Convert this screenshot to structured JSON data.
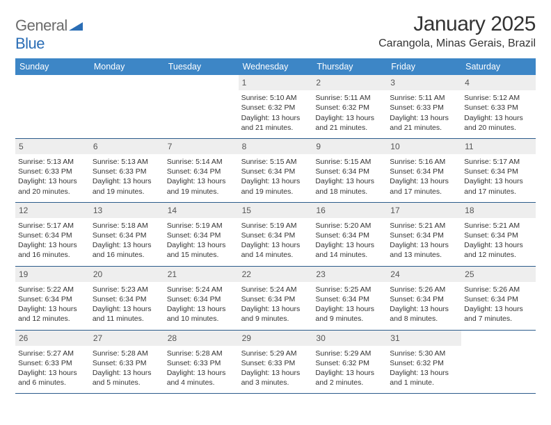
{
  "brand": {
    "name_a": "General",
    "name_b": "Blue"
  },
  "title": "January 2025",
  "location": "Carangola, Minas Gerais, Brazil",
  "colors": {
    "header_bg": "#3d86c6",
    "header_text": "#ffffff",
    "daynum_bg": "#eeeeee",
    "week_border": "#2a5a8a",
    "text": "#333333",
    "logo_gray": "#6b6b6b",
    "logo_blue": "#2a6db5"
  },
  "typography": {
    "title_fontsize": 30,
    "location_fontsize": 16,
    "dayheader_fontsize": 12.5,
    "daynum_fontsize": 12,
    "cell_fontsize": 10.5
  },
  "day_headers": [
    "Sunday",
    "Monday",
    "Tuesday",
    "Wednesday",
    "Thursday",
    "Friday",
    "Saturday"
  ],
  "weeks": [
    [
      null,
      null,
      null,
      {
        "n": "1",
        "sr": "5:10 AM",
        "ss": "6:32 PM",
        "dl": "Daylight: 13 hours and 21 minutes."
      },
      {
        "n": "2",
        "sr": "5:11 AM",
        "ss": "6:32 PM",
        "dl": "Daylight: 13 hours and 21 minutes."
      },
      {
        "n": "3",
        "sr": "5:11 AM",
        "ss": "6:33 PM",
        "dl": "Daylight: 13 hours and 21 minutes."
      },
      {
        "n": "4",
        "sr": "5:12 AM",
        "ss": "6:33 PM",
        "dl": "Daylight: 13 hours and 20 minutes."
      }
    ],
    [
      {
        "n": "5",
        "sr": "5:13 AM",
        "ss": "6:33 PM",
        "dl": "Daylight: 13 hours and 20 minutes."
      },
      {
        "n": "6",
        "sr": "5:13 AM",
        "ss": "6:33 PM",
        "dl": "Daylight: 13 hours and 19 minutes."
      },
      {
        "n": "7",
        "sr": "5:14 AM",
        "ss": "6:34 PM",
        "dl": "Daylight: 13 hours and 19 minutes."
      },
      {
        "n": "8",
        "sr": "5:15 AM",
        "ss": "6:34 PM",
        "dl": "Daylight: 13 hours and 19 minutes."
      },
      {
        "n": "9",
        "sr": "5:15 AM",
        "ss": "6:34 PM",
        "dl": "Daylight: 13 hours and 18 minutes."
      },
      {
        "n": "10",
        "sr": "5:16 AM",
        "ss": "6:34 PM",
        "dl": "Daylight: 13 hours and 17 minutes."
      },
      {
        "n": "11",
        "sr": "5:17 AM",
        "ss": "6:34 PM",
        "dl": "Daylight: 13 hours and 17 minutes."
      }
    ],
    [
      {
        "n": "12",
        "sr": "5:17 AM",
        "ss": "6:34 PM",
        "dl": "Daylight: 13 hours and 16 minutes."
      },
      {
        "n": "13",
        "sr": "5:18 AM",
        "ss": "6:34 PM",
        "dl": "Daylight: 13 hours and 16 minutes."
      },
      {
        "n": "14",
        "sr": "5:19 AM",
        "ss": "6:34 PM",
        "dl": "Daylight: 13 hours and 15 minutes."
      },
      {
        "n": "15",
        "sr": "5:19 AM",
        "ss": "6:34 PM",
        "dl": "Daylight: 13 hours and 14 minutes."
      },
      {
        "n": "16",
        "sr": "5:20 AM",
        "ss": "6:34 PM",
        "dl": "Daylight: 13 hours and 14 minutes."
      },
      {
        "n": "17",
        "sr": "5:21 AM",
        "ss": "6:34 PM",
        "dl": "Daylight: 13 hours and 13 minutes."
      },
      {
        "n": "18",
        "sr": "5:21 AM",
        "ss": "6:34 PM",
        "dl": "Daylight: 13 hours and 12 minutes."
      }
    ],
    [
      {
        "n": "19",
        "sr": "5:22 AM",
        "ss": "6:34 PM",
        "dl": "Daylight: 13 hours and 12 minutes."
      },
      {
        "n": "20",
        "sr": "5:23 AM",
        "ss": "6:34 PM",
        "dl": "Daylight: 13 hours and 11 minutes."
      },
      {
        "n": "21",
        "sr": "5:24 AM",
        "ss": "6:34 PM",
        "dl": "Daylight: 13 hours and 10 minutes."
      },
      {
        "n": "22",
        "sr": "5:24 AM",
        "ss": "6:34 PM",
        "dl": "Daylight: 13 hours and 9 minutes."
      },
      {
        "n": "23",
        "sr": "5:25 AM",
        "ss": "6:34 PM",
        "dl": "Daylight: 13 hours and 9 minutes."
      },
      {
        "n": "24",
        "sr": "5:26 AM",
        "ss": "6:34 PM",
        "dl": "Daylight: 13 hours and 8 minutes."
      },
      {
        "n": "25",
        "sr": "5:26 AM",
        "ss": "6:34 PM",
        "dl": "Daylight: 13 hours and 7 minutes."
      }
    ],
    [
      {
        "n": "26",
        "sr": "5:27 AM",
        "ss": "6:33 PM",
        "dl": "Daylight: 13 hours and 6 minutes."
      },
      {
        "n": "27",
        "sr": "5:28 AM",
        "ss": "6:33 PM",
        "dl": "Daylight: 13 hours and 5 minutes."
      },
      {
        "n": "28",
        "sr": "5:28 AM",
        "ss": "6:33 PM",
        "dl": "Daylight: 13 hours and 4 minutes."
      },
      {
        "n": "29",
        "sr": "5:29 AM",
        "ss": "6:33 PM",
        "dl": "Daylight: 13 hours and 3 minutes."
      },
      {
        "n": "30",
        "sr": "5:29 AM",
        "ss": "6:32 PM",
        "dl": "Daylight: 13 hours and 2 minutes."
      },
      {
        "n": "31",
        "sr": "5:30 AM",
        "ss": "6:32 PM",
        "dl": "Daylight: 13 hours and 1 minute."
      },
      null
    ]
  ],
  "labels": {
    "sunrise_prefix": "Sunrise: ",
    "sunset_prefix": "Sunset: "
  }
}
